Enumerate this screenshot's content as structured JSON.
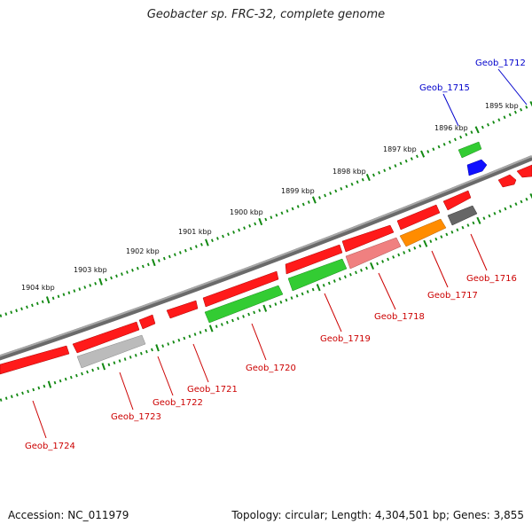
{
  "title": "Geobacter sp. FRC-32, complete genome",
  "footer": {
    "accession": "Accession: NC_011979",
    "info": "Topology: circular; Length: 4,304,501 bp; Genes: 3,855"
  },
  "colors": {
    "backbone": "#808080",
    "tick": "#118811",
    "red_label": "#cc0000",
    "blue_label": "#0000cc"
  },
  "tick_labels": [
    "1904 kbp",
    "1903 kbp",
    "1902 kbp",
    "1901 kbp",
    "1900 kbp",
    "1899 kbp",
    "1898 kbp",
    "1897 kbp",
    "1896 kbp",
    "1895 kbp"
  ],
  "genes": [
    {
      "name": "Geob_1712",
      "color": "#0000ff",
      "label_color": "#0000cc"
    },
    {
      "name": "Geob_1715",
      "color": "#0000ff",
      "label_color": "#0000cc"
    },
    {
      "name": "Geob_1716",
      "color": "#666666",
      "label_color": "#cc0000"
    },
    {
      "name": "Geob_1717",
      "color": "#ff8c00",
      "label_color": "#cc0000"
    },
    {
      "name": "Geob_1718",
      "color": "#f08080",
      "label_color": "#cc0000"
    },
    {
      "name": "Geob_1719",
      "color": "#33cc33",
      "label_color": "#cc0000"
    },
    {
      "name": "Geob_1720",
      "color": "#33cc33",
      "label_color": "#cc0000"
    },
    {
      "name": "Geob_1721",
      "color": "#ff0000",
      "label_color": "#cc0000"
    },
    {
      "name": "Geob_1722",
      "color": "#ff0000",
      "label_color": "#cc0000"
    },
    {
      "name": "Geob_1723",
      "color": "#bbbbbb",
      "label_color": "#cc0000"
    },
    {
      "name": "Geob_1724",
      "color": "#ff0000",
      "label_color": "#cc0000"
    }
  ]
}
